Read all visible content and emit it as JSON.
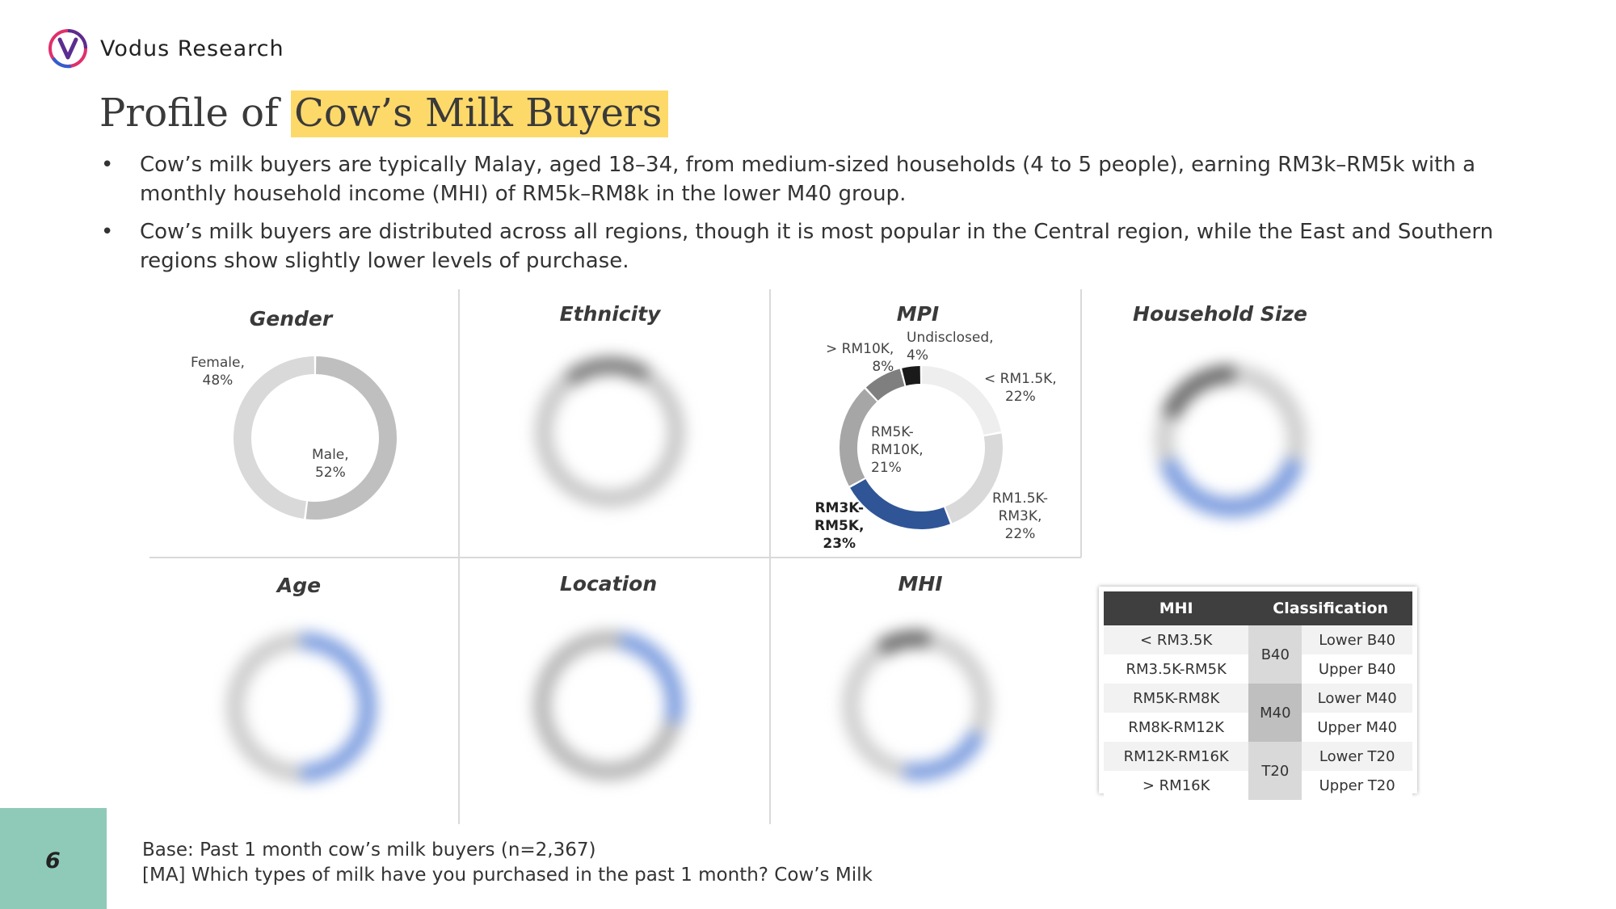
{
  "brand": {
    "name": "Vodus Research",
    "logo": "vodus-v-logo-icon",
    "logo_colors": [
      "#5b2d90",
      "#e0306b",
      "#2f5fd0"
    ]
  },
  "title": {
    "prefix": "Profile of ",
    "highlight": "Cow’s Milk Buyers",
    "highlight_color": "#fdd96a"
  },
  "bullets": [
    "Cow’s milk buyers are typically Malay, aged 18–34, from medium-sized households (4 to 5 people), earning RM3k–RM5k with a monthly household income (MHI) of RM5k–RM8k in the lower M40 group.",
    "Cow’s milk buyers are distributed across all regions, though it is most popular in the Central region, while the East and Southern regions show slightly lower levels of purchase."
  ],
  "bullet_symbol": "•",
  "chart_data": [
    {
      "type": "pie",
      "title": "Gender",
      "donut": true,
      "slices": [
        {
          "label": "Male,",
          "pct": "52%",
          "value": 52,
          "color": "#bfbfbf"
        },
        {
          "label": "Female,",
          "pct": "48%",
          "value": 48,
          "color": "#d9d9d9"
        }
      ]
    },
    {
      "type": "pie",
      "title": "Ethnicity",
      "donut": true,
      "blurred": true
    },
    {
      "type": "pie",
      "title": "MPI",
      "donut": true,
      "slices": [
        {
          "label": "< RM1.5K,",
          "pct": "22%",
          "value": 22,
          "color": "#eeeeee"
        },
        {
          "label": "RM1.5K-RM3K,",
          "label_lines": [
            "RM1.5K-",
            "RM3K,"
          ],
          "pct": "22%",
          "value": 22,
          "color": "#d9d9d9"
        },
        {
          "label": "RM3K-RM5K,",
          "label_lines": [
            "RM3K-",
            "RM5K,"
          ],
          "pct": "23%",
          "value": 23,
          "color": "#2f5597",
          "highlight": true
        },
        {
          "label": "RM5K-RM10K,",
          "label_lines": [
            "RM5K-",
            "RM10K,"
          ],
          "pct": "21%",
          "value": 21,
          "color": "#a6a6a6"
        },
        {
          "label": "> RM10K,",
          "pct": "8%",
          "value": 8,
          "color": "#7f7f7f"
        },
        {
          "label": "Undisclosed,",
          "pct": "4%",
          "value": 4,
          "color": "#1a1a1a"
        }
      ]
    },
    {
      "type": "pie",
      "title": "Household Size",
      "donut": true,
      "blurred": true
    },
    {
      "type": "pie",
      "title": "Age",
      "donut": true,
      "blurred": true
    },
    {
      "type": "pie",
      "title": "Location",
      "donut": true,
      "blurred": true
    },
    {
      "type": "pie",
      "title": "MHI",
      "donut": true,
      "blurred": true
    },
    {
      "type": "table",
      "title": "MHI classification",
      "headers": [
        "MHI",
        "Classification"
      ],
      "rows": [
        {
          "mhi": "< RM3.5K",
          "class": "Lower B40"
        },
        {
          "mhi": "RM3.5K-RM5K",
          "class": "Upper B40"
        },
        {
          "mhi": "RM5K-RM8K",
          "class": "Lower M40"
        },
        {
          "mhi": "RM8K-RM12K",
          "class": "Upper M40"
        },
        {
          "mhi": "RM12K-RM16K",
          "class": "Lower T20"
        },
        {
          "mhi": "> RM16K",
          "class": "Upper T20"
        }
      ],
      "groups": [
        "B40",
        "M40",
        "T20"
      ]
    }
  ],
  "page_number": "6",
  "page_tab_color": "#8fcab9",
  "footer": {
    "base": "Base: Past 1 month cow’s milk buyers (n=2,367)",
    "question": "[MA] Which types of milk have you purchased in the past 1 month? Cow’s Milk"
  }
}
